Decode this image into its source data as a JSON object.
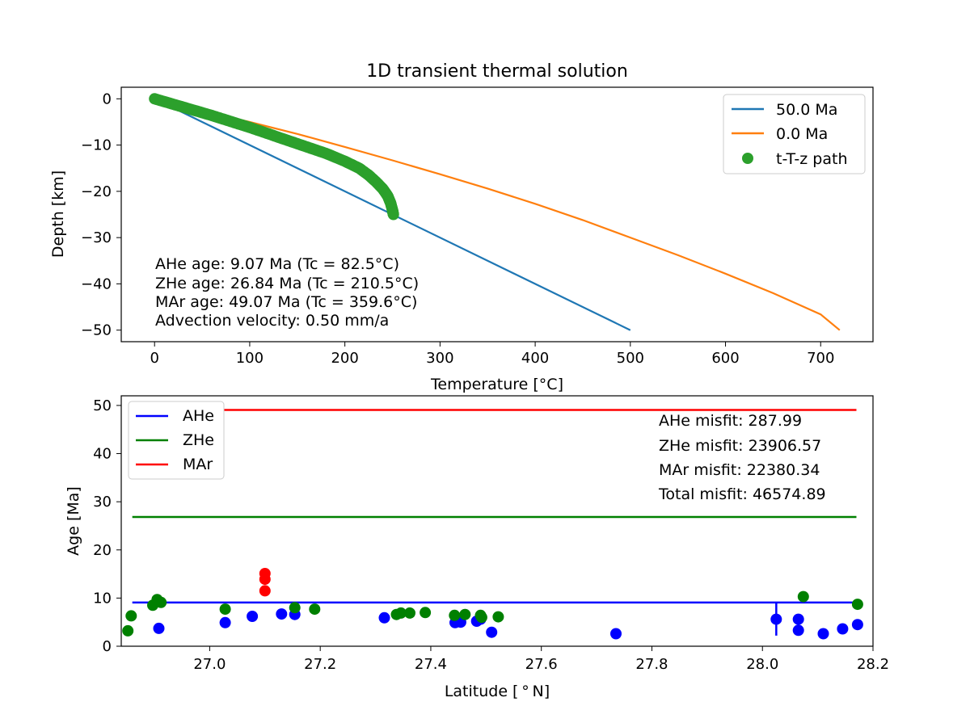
{
  "chart_data": [
    {
      "type": "line",
      "title": "1D transient thermal solution",
      "xlabel": "Temperature [°C]",
      "ylabel": "Depth [km]",
      "xlim": [
        -35,
        755
      ],
      "ylim": [
        -52.5,
        2.5
      ],
      "xticks": [
        0,
        100,
        200,
        300,
        400,
        500,
        600,
        700
      ],
      "yticks": [
        0,
        -10,
        -20,
        -30,
        -40,
        -50
      ],
      "ytick_labels": [
        "0",
        "−10",
        "−20",
        "−30",
        "−40",
        "−50"
      ],
      "legend_position": "top-right",
      "colors": {
        "blue": "#1f77b4",
        "orange": "#ff7f0e",
        "green": "#2ca02c"
      },
      "series": [
        {
          "name": "50.0 Ma",
          "kind": "line",
          "color": "#1f77b4",
          "x": [
            0,
            500
          ],
          "y": [
            0,
            -50
          ]
        },
        {
          "name": "0.0 Ma",
          "kind": "line",
          "color": "#ff7f0e",
          "x": [
            0,
            50,
            100,
            150,
            200,
            250,
            300,
            350,
            400,
            450,
            500,
            550,
            600,
            650,
            700,
            720
          ],
          "y": [
            0,
            -2.6,
            -5.0,
            -7.6,
            -10.4,
            -13.3,
            -16.3,
            -19.4,
            -22.7,
            -26.2,
            -30.0,
            -33.8,
            -37.8,
            -42.0,
            -46.6,
            -50
          ]
        },
        {
          "name": "t-T-z path",
          "kind": "scatter",
          "color": "#2ca02c",
          "x": [
            0,
            20,
            40,
            60,
            80,
            100,
            120,
            140,
            160,
            180,
            200,
            215,
            225,
            233,
            240,
            245,
            248,
            250,
            251
          ],
          "y": [
            0,
            -1.2,
            -2.4,
            -3.6,
            -4.9,
            -6.2,
            -7.6,
            -9.0,
            -10.4,
            -11.8,
            -13.5,
            -15.0,
            -16.5,
            -18.0,
            -19.5,
            -21.0,
            -22.5,
            -24.0,
            -25.0
          ]
        }
      ],
      "annotations": [
        "AHe age: 9.07 Ma (Tc = 82.5°C)",
        "ZHe age: 26.84 Ma (Tc = 210.5°C)",
        "MAr age: 49.07 Ma (Tc = 359.6°C)",
        "Advection velocity: 0.50 mm/a"
      ]
    },
    {
      "type": "scatter",
      "xlabel": "Latitude [$^\\circ$N]",
      "ylabel": "Age [Ma]",
      "xlim": [
        26.84,
        28.2
      ],
      "ylim": [
        0,
        52
      ],
      "xticks": [
        27.0,
        27.2,
        27.4,
        27.6,
        27.8,
        28.0,
        28.2
      ],
      "xtick_labels": [
        "27.0",
        "27.2",
        "27.4",
        "27.6",
        "27.8",
        "28.0",
        "28.2"
      ],
      "yticks": [
        0,
        10,
        20,
        30,
        40,
        50
      ],
      "legend_position": "top-left",
      "predicted_ages": [
        {
          "name": "AHe",
          "color": "#0000ff",
          "value": 9.07,
          "x_range": [
            26.86,
            28.17
          ]
        },
        {
          "name": "ZHe",
          "color": "#008000",
          "value": 26.84,
          "x_range": [
            26.86,
            28.17
          ]
        },
        {
          "name": "MAr",
          "color": "#ff0000",
          "value": 49.07,
          "x_range": [
            26.86,
            28.17
          ]
        }
      ],
      "error_bars": [
        {
          "x": 28.025,
          "y_low": 2.2,
          "y_high": 9.07,
          "color": "#0000ff"
        }
      ],
      "observed": {
        "AHe": {
          "color": "#0000ff",
          "points": [
            [
              26.908,
              3.7
            ],
            [
              27.028,
              4.9
            ],
            [
              27.077,
              6.2
            ],
            [
              27.13,
              6.7
            ],
            [
              27.154,
              6.6
            ],
            [
              27.316,
              5.9
            ],
            [
              27.444,
              4.9
            ],
            [
              27.454,
              5.0
            ],
            [
              27.483,
              5.2
            ],
            [
              27.49,
              5.6
            ],
            [
              27.51,
              2.9
            ],
            [
              27.735,
              2.6
            ],
            [
              28.025,
              5.6
            ],
            [
              28.065,
              5.6
            ],
            [
              28.065,
              3.3
            ],
            [
              28.11,
              2.6
            ],
            [
              28.145,
              3.6
            ],
            [
              28.172,
              4.5
            ]
          ]
        },
        "ZHe": {
          "color": "#008000",
          "points": [
            [
              26.852,
              3.2
            ],
            [
              26.858,
              6.3
            ],
            [
              26.897,
              8.5
            ],
            [
              26.905,
              9.7
            ],
            [
              26.912,
              9.1
            ],
            [
              27.028,
              7.7
            ],
            [
              27.154,
              8.0
            ],
            [
              27.19,
              7.7
            ],
            [
              27.338,
              6.6
            ],
            [
              27.346,
              6.9
            ],
            [
              27.362,
              6.9
            ],
            [
              27.39,
              7.0
            ],
            [
              27.443,
              6.4
            ],
            [
              27.462,
              6.6
            ],
            [
              27.49,
              6.4
            ],
            [
              27.492,
              6.0
            ],
            [
              27.522,
              6.1
            ],
            [
              28.074,
              10.3
            ],
            [
              28.172,
              8.7
            ]
          ]
        },
        "MAr": {
          "color": "#ff0000",
          "points": [
            [
              27.1,
              15.1
            ],
            [
              27.1,
              13.9
            ],
            [
              27.1,
              11.5
            ]
          ]
        }
      },
      "annotations": [
        "AHe misfit: 287.99",
        "ZHe misfit: 23906.57",
        "MAr misfit: 22380.34",
        "Total misfit: 46574.89"
      ]
    }
  ]
}
